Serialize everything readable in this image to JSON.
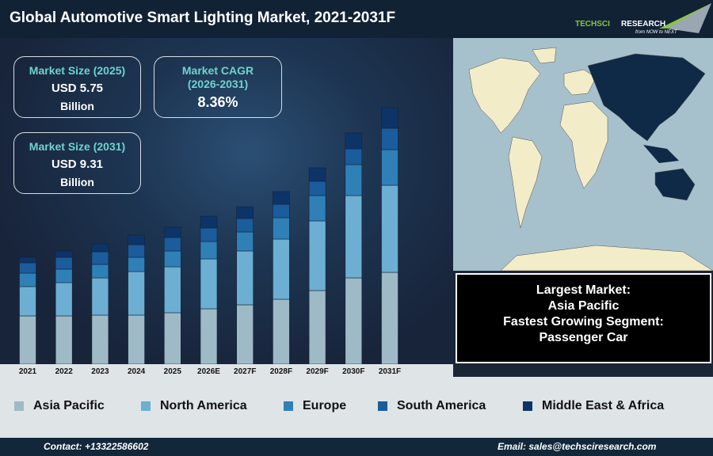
{
  "header": {
    "title": "Global Automotive Smart Lighting Market, 2021-2031F",
    "logo_text": "TECHSCI RESEARCH",
    "logo_tagline": "from NOW to NEXT"
  },
  "stats": [
    {
      "label": "Market Size (2025)",
      "value": "USD 5.75",
      "unit": "Billion"
    },
    {
      "label": "Market CAGR (2026-2031)",
      "value": "8.36%"
    },
    {
      "label": "Market Size (2031)",
      "value": "USD 9.31",
      "unit": "Billion"
    }
  ],
  "info": {
    "largest_label": "Largest Market:",
    "largest_value": "Asia Pacific",
    "fastest_label": "Fastest Growing Segment:",
    "fastest_value": "Passenger Car"
  },
  "footer": {
    "contact": "Contact: +13322586602",
    "email": "Email: sales@techsciresearch.com"
  },
  "colors": {
    "Asia Pacific": "#9fbac7",
    "North America": "#6cafd2",
    "Europe": "#2f80b7",
    "South America": "#1b5c9c",
    "Middle East & Africa": "#0d3467"
  },
  "chart_data": {
    "type": "bar",
    "stacked": true,
    "title": "Global Automotive Smart Lighting Market, 2021-2031F",
    "note": "no value axis printed; values are relative estimates",
    "categories": [
      "2021",
      "2022",
      "2023",
      "2024",
      "2025",
      "2026E",
      "2027F",
      "2028F",
      "2029F",
      "2030F",
      "2031F"
    ],
    "legend_position": "bottom",
    "grid": false,
    "series": [
      {
        "name": "Asia Pacific",
        "values": [
          61,
          61,
          62,
          62,
          65,
          70,
          75,
          82,
          93,
          109,
          116
        ]
      },
      {
        "name": "North America",
        "values": [
          37,
          42,
          47,
          55,
          58,
          63,
          68,
          76,
          88,
          104,
          110
        ]
      },
      {
        "name": "Europe",
        "values": [
          17,
          17,
          17,
          18,
          20,
          22,
          24,
          27,
          32,
          39,
          45
        ]
      },
      {
        "name": "South America",
        "values": [
          13,
          15,
          16,
          16,
          17,
          17,
          17,
          17,
          18,
          20,
          27
        ]
      },
      {
        "name": "Middle East & Africa",
        "values": [
          7,
          8,
          10,
          12,
          13,
          15,
          15,
          16,
          17,
          20,
          26
        ]
      }
    ]
  }
}
